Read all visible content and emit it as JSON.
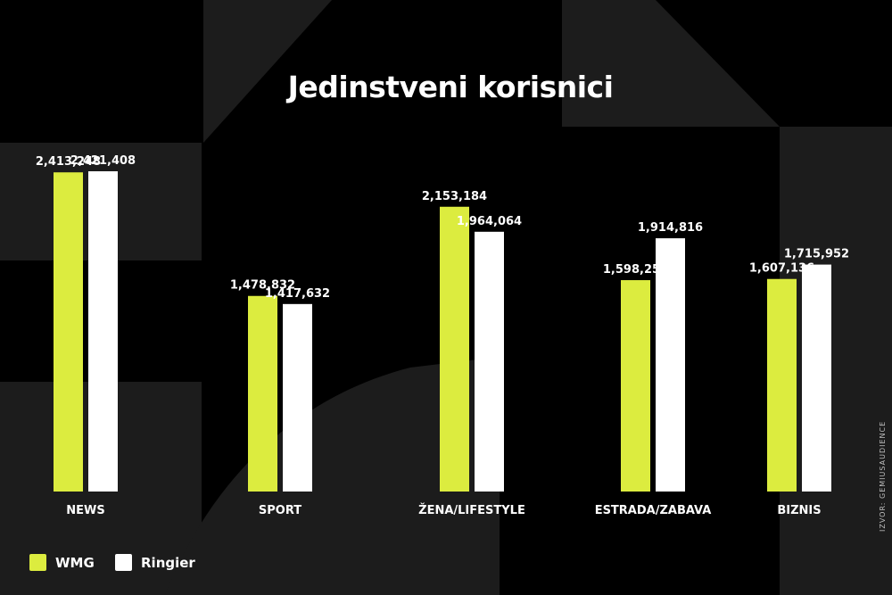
{
  "colors": {
    "wmg": "#dcec3f",
    "ringier": "#ffffff",
    "background": "#000000",
    "decor": "#1c1c1c"
  },
  "source_note": "IZVOR: GEMIUSAUDIENCE",
  "chart_data": {
    "type": "bar",
    "title": "Jedinstveni korisnici",
    "categories": [
      "NEWS",
      "SPORT",
      "ŽENA/LIFESTYLE",
      "ESTRADA/ZABAVA",
      "BIZNIS"
    ],
    "series": [
      {
        "name": "WMG",
        "values": [
          2413248,
          1478832,
          2153184,
          1598256,
          1607136
        ],
        "labels": [
          "2,413,248",
          "1,478,832",
          "2,153,184",
          "1,598,256",
          "1,607,136"
        ]
      },
      {
        "name": "Ringier",
        "values": [
          2421408,
          1417632,
          1964064,
          1914816,
          1715952
        ],
        "labels": [
          "2,421,408",
          "1,417,632",
          "1,964,064",
          "1,914,816",
          "1,715,952"
        ]
      }
    ],
    "legend_position": "bottom-left",
    "grid": false
  }
}
